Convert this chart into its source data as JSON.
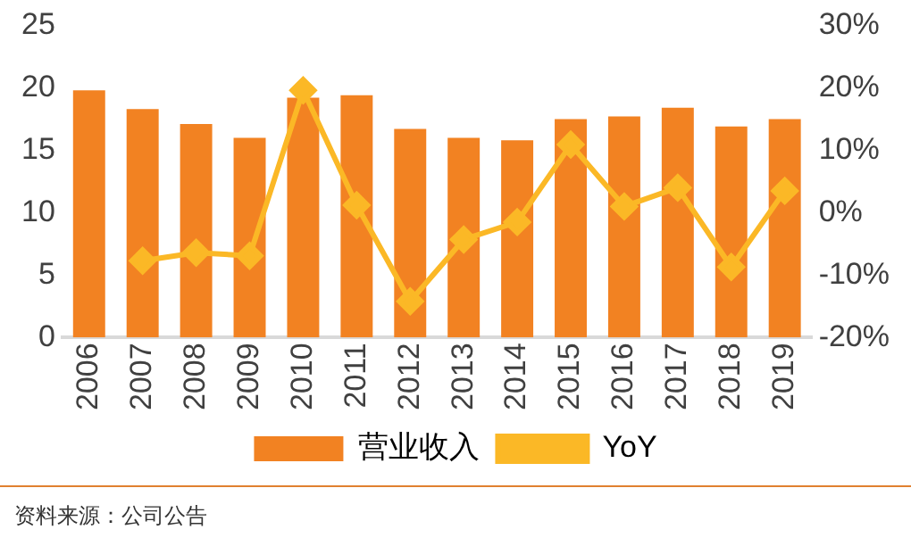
{
  "chart_data": {
    "type": "bar",
    "categories": [
      "2006",
      "2007",
      "2008",
      "2009",
      "2010",
      "2011",
      "2012",
      "2013",
      "2014",
      "2015",
      "2016",
      "2017",
      "2018",
      "2019"
    ],
    "series": [
      {
        "name": "营业收入",
        "color": "#f28222",
        "values": [
          19.8,
          18.3,
          17.1,
          16.0,
          19.2,
          19.4,
          16.7,
          16.0,
          15.8,
          17.5,
          17.7,
          18.4,
          16.9,
          17.5
        ]
      },
      {
        "name": "YoY",
        "type": "line",
        "axis": "y2",
        "color": "#fbb826",
        "marker": "diamond",
        "values": [
          null,
          -7.7,
          -6.4,
          -6.9,
          19.6,
          1.2,
          -14.2,
          -4.3,
          -1.5,
          10.9,
          1.0,
          4.0,
          -8.7,
          3.5
        ]
      }
    ],
    "ylim": [
      0,
      25
    ],
    "yticks": [
      0,
      5,
      10,
      15,
      20,
      25
    ],
    "y2lim": [
      -20,
      30
    ],
    "y2ticks": [
      {
        "value": -20,
        "label": "-20%"
      },
      {
        "value": -10,
        "label": "-10%"
      },
      {
        "value": 0,
        "label": "0%"
      },
      {
        "value": 10,
        "label": "10%"
      },
      {
        "value": 20,
        "label": "20%"
      },
      {
        "value": 30,
        "label": "30%"
      }
    ],
    "grid": false,
    "legend": "bottom",
    "annotations": [
      "资料来源：公司公告"
    ]
  }
}
